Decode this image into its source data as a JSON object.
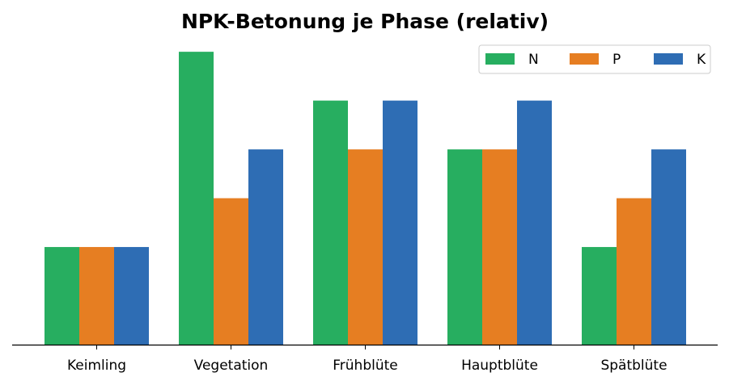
{
  "chart_data": {
    "type": "bar",
    "title": "NPK-Betonung je Phase (relativ)",
    "xlabel": "",
    "ylabel": "",
    "categories": [
      "Keimling",
      "Vegetation",
      "Frühblüte",
      "Hauptblüte",
      "Spätblüte"
    ],
    "series": [
      {
        "name": "N",
        "values": [
          2,
          6,
          5,
          4,
          2
        ]
      },
      {
        "name": "P",
        "values": [
          2,
          3,
          4,
          4,
          3
        ]
      },
      {
        "name": "K",
        "values": [
          2,
          4,
          5,
          5,
          4
        ]
      }
    ],
    "colors": [
      "#27ae60",
      "#e67e22",
      "#2e6db4"
    ],
    "ylim": [
      0,
      6.3
    ],
    "grid": false,
    "y_axis_visible": false,
    "legend": {
      "placement": "top-right",
      "columns": 3
    }
  }
}
